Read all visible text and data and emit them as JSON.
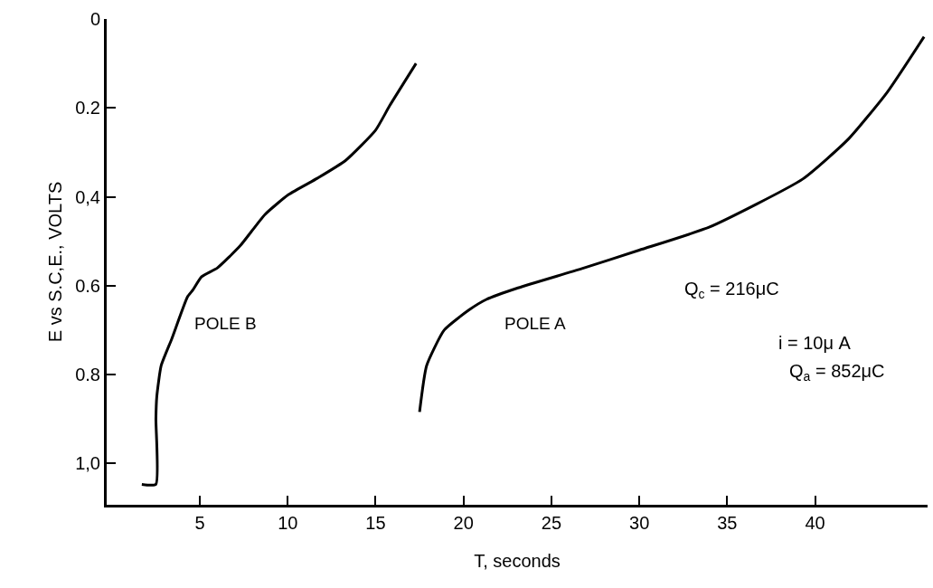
{
  "chart_data": {
    "type": "line",
    "xlabel": "T, seconds",
    "ylabel": "E vs S.C,E., VOLTS",
    "series": [
      {
        "name": "POLE B",
        "color": "#000000",
        "x": [
          1.7,
          2.5,
          2.5,
          2.55,
          2.8,
          3.4,
          4.3,
          4.6,
          5.1,
          6.0,
          7.3,
          8.7,
          10.05,
          11.7,
          13.3,
          15.0,
          15.8,
          17.3
        ],
        "values": [
          1.047,
          1.047,
          0.9,
          0.85,
          0.78,
          0.72,
          0.625,
          0.61,
          0.58,
          0.56,
          0.51,
          0.44,
          0.395,
          0.358,
          0.318,
          0.25,
          0.195,
          0.1
        ]
      },
      {
        "name": "POLE A",
        "color": "#000000",
        "x": [
          17.5,
          17.9,
          18.9,
          20.3,
          21.3,
          23.1,
          26.7,
          30.0,
          34.0,
          39.3,
          41.9,
          44.1,
          46.2
        ],
        "values": [
          0.884,
          0.78,
          0.7,
          0.655,
          0.631,
          0.605,
          0.562,
          0.52,
          0.468,
          0.36,
          0.27,
          0.165,
          0.04
        ]
      }
    ],
    "annotations": [
      "Q$_{c}$ = 216μC",
      "i = 10μ A",
      "Q$_{a}$ = 852μC"
    ],
    "xlim": [
      -0.3,
      46.4
    ],
    "xticks": [
      5,
      10,
      15,
      20,
      25,
      30,
      35,
      40
    ],
    "ylim": [
      1.093,
      0
    ],
    "yticks": [
      0,
      0.2,
      {
        "value": 0.4,
        "label": "0,4"
      },
      0.6,
      0.8,
      {
        "value": 1.0,
        "label": "1,0"
      }
    ],
    "legend": false,
    "marker": "none",
    "line_style": "solid"
  }
}
